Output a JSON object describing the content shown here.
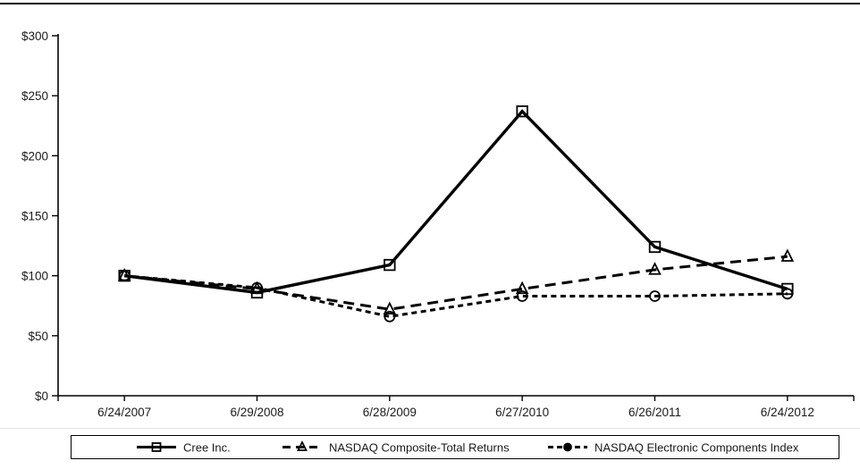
{
  "chart_data": {
    "type": "line",
    "title": "",
    "x_categories": [
      "6/24/2007",
      "6/29/2008",
      "6/28/2009",
      "6/27/2010",
      "6/26/2011",
      "6/24/2012"
    ],
    "y_ticks": [
      "$0",
      "$50",
      "$100",
      "$150",
      "$200",
      "$250",
      "$300"
    ],
    "y_tick_values": [
      0,
      50,
      100,
      150,
      200,
      250,
      300
    ],
    "ylim": [
      0,
      300
    ],
    "grid": false,
    "legend_position": "bottom",
    "series": [
      {
        "name": "Cree Inc.",
        "marker": "square",
        "line_style": "solid",
        "color": "#000000",
        "values": [
          100,
          86,
          109,
          237,
          124,
          89
        ]
      },
      {
        "name": "NASDAQ Composite-Total Returns",
        "marker": "triangle",
        "line_style": "long-dash",
        "color": "#000000",
        "values": [
          100,
          89,
          72,
          89,
          105,
          116
        ]
      },
      {
        "name": "NASDAQ Electronic Components Index",
        "marker": "circle",
        "line_style": "short-dash",
        "color": "#000000",
        "values": [
          100,
          90,
          66,
          83,
          83,
          85
        ]
      }
    ]
  },
  "colors": {
    "axis": "#000000",
    "text": "#1a1a1a",
    "background": "#ffffff"
  }
}
